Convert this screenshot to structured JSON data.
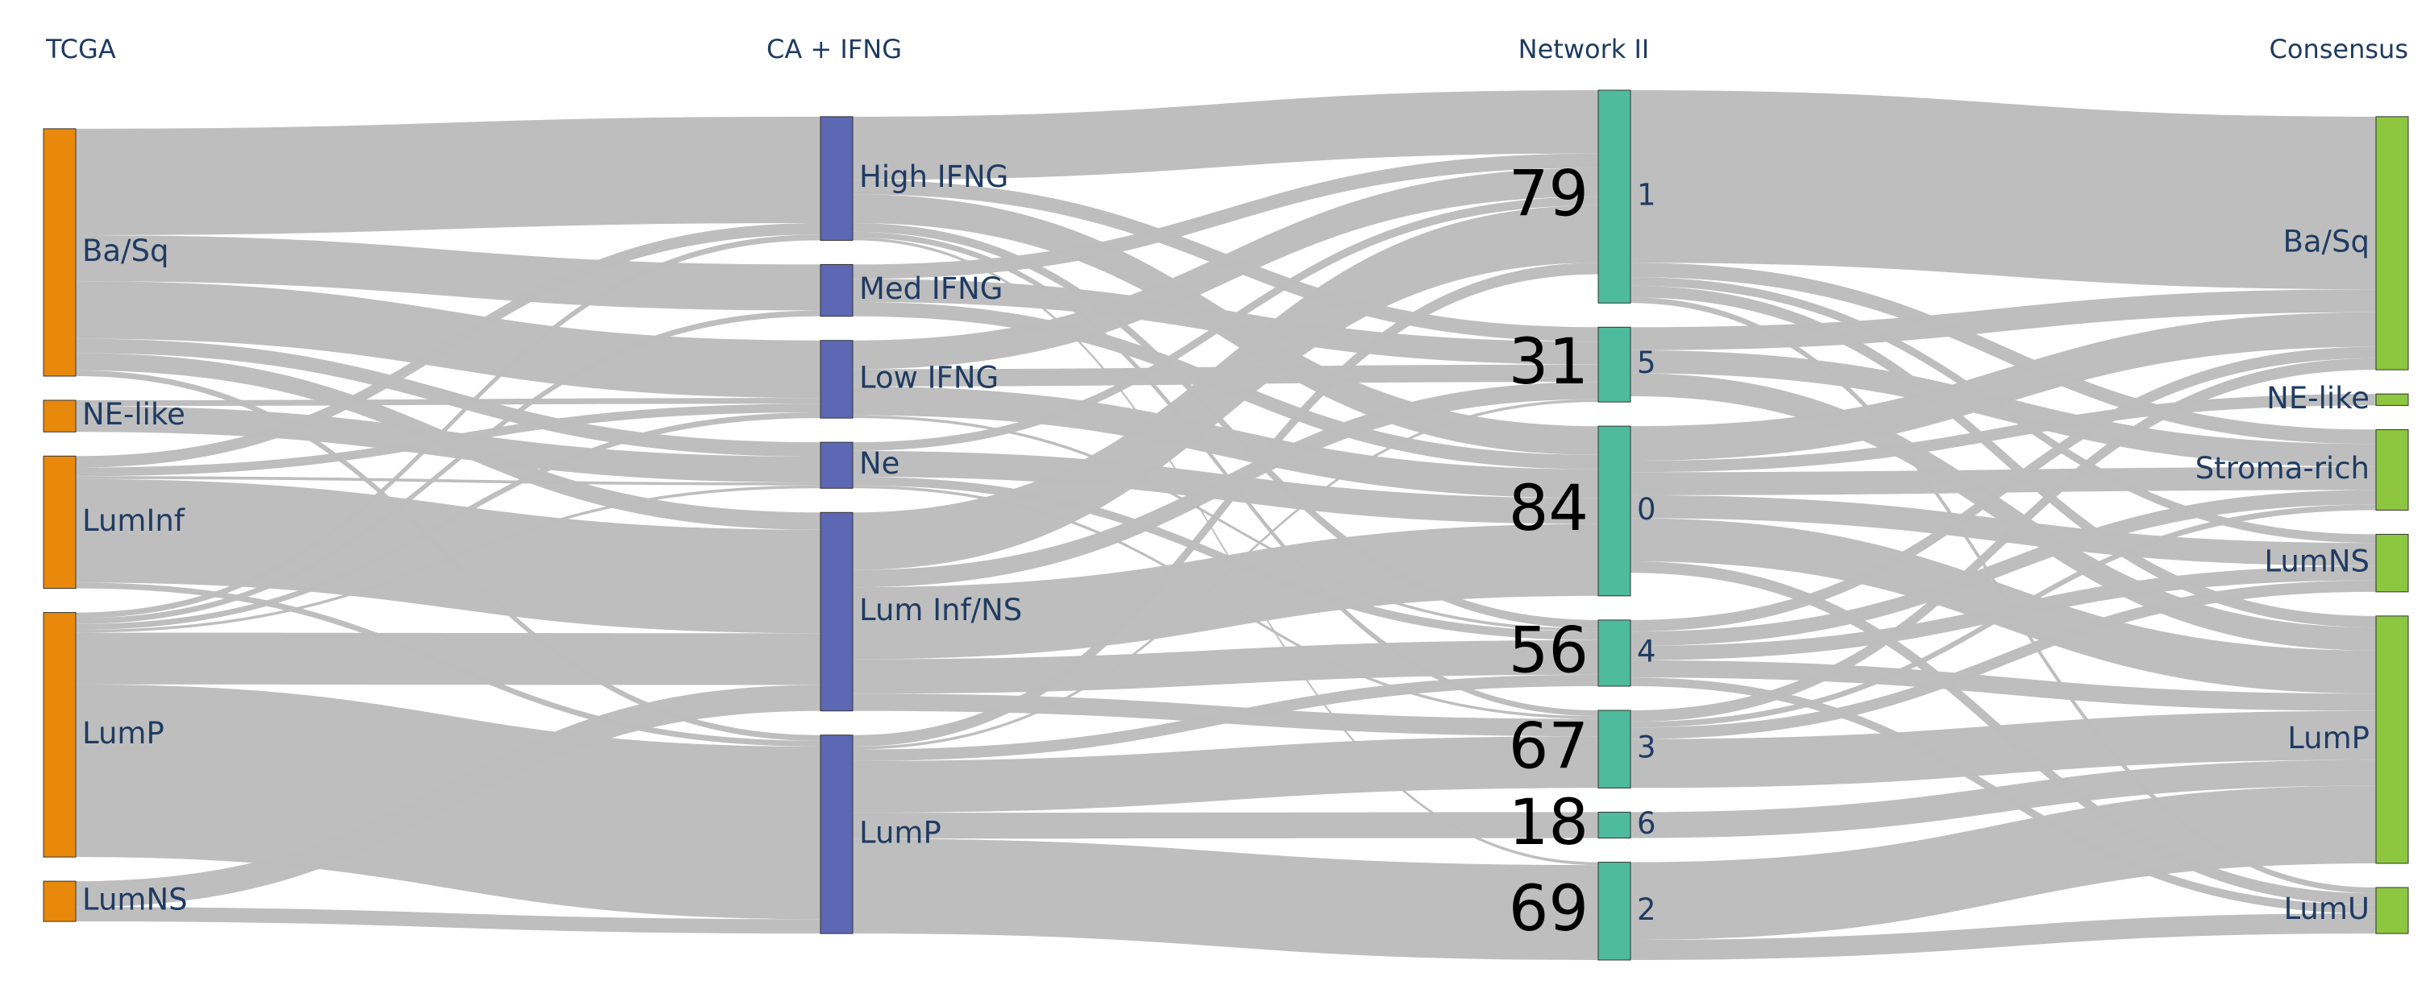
{
  "columns": [
    {
      "id": "tcga",
      "title": "TCGA",
      "color": "#e8890c",
      "nodes": [
        {
          "id": "t_basq",
          "label": "Ba/Sq"
        },
        {
          "id": "t_ne",
          "label": "NE-like"
        },
        {
          "id": "t_luminf",
          "label": "LumInf"
        },
        {
          "id": "t_lump",
          "label": "LumP"
        },
        {
          "id": "t_lumns",
          "label": "LumNS"
        }
      ]
    },
    {
      "id": "ca",
      "title": "CA + IFNG",
      "color": "#5c68b3",
      "nodes": [
        {
          "id": "c_high",
          "label": "High IFNG"
        },
        {
          "id": "c_med",
          "label": "Med IFNG"
        },
        {
          "id": "c_low",
          "label": "Low IFNG"
        },
        {
          "id": "c_ne",
          "label": "Ne"
        },
        {
          "id": "c_luminf",
          "label": "Lum Inf/NS"
        },
        {
          "id": "c_lump",
          "label": "LumP"
        }
      ]
    },
    {
      "id": "net",
      "title": "Network II",
      "color": "#4dbb9c",
      "nodes": [
        {
          "id": "n1",
          "label": "1",
          "count": "79"
        },
        {
          "id": "n5",
          "label": "5",
          "count": "31"
        },
        {
          "id": "n0",
          "label": "0",
          "count": "84"
        },
        {
          "id": "n4",
          "label": "4",
          "count": "56"
        },
        {
          "id": "n3",
          "label": "3",
          "count": "67"
        },
        {
          "id": "n6",
          "label": "6",
          "count": "18"
        },
        {
          "id": "n2",
          "label": "2",
          "count": "69"
        }
      ]
    },
    {
      "id": "cons",
      "title": "Consensus",
      "color": "#8dc63f",
      "nodes": [
        {
          "id": "s_basq",
          "label": "Ba/Sq"
        },
        {
          "id": "s_ne",
          "label": "NE-like"
        },
        {
          "id": "s_stroma",
          "label": "Stroma-rich"
        },
        {
          "id": "s_lumns",
          "label": "LumNS"
        },
        {
          "id": "s_lump",
          "label": "LumP"
        },
        {
          "id": "s_lumu",
          "label": "LumU"
        }
      ]
    }
  ],
  "links": [
    {
      "source": "t_basq",
      "target": "c_high",
      "value": 37
    },
    {
      "source": "t_basq",
      "target": "c_med",
      "value": 16
    },
    {
      "source": "t_basq",
      "target": "c_low",
      "value": 20
    },
    {
      "source": "t_basq",
      "target": "c_ne",
      "value": 5
    },
    {
      "source": "t_basq",
      "target": "c_luminf",
      "value": 6
    },
    {
      "source": "t_basq",
      "target": "c_lump",
      "value": 2
    },
    {
      "source": "t_ne",
      "target": "c_ne",
      "value": 9
    },
    {
      "source": "t_ne",
      "target": "c_low",
      "value": 2
    },
    {
      "source": "t_luminf",
      "target": "c_high",
      "value": 4
    },
    {
      "source": "t_luminf",
      "target": "c_low",
      "value": 3
    },
    {
      "source": "t_luminf",
      "target": "c_ne",
      "value": 1
    },
    {
      "source": "t_luminf",
      "target": "c_luminf",
      "value": 36
    },
    {
      "source": "t_luminf",
      "target": "c_lump",
      "value": 2
    },
    {
      "source": "t_lump",
      "target": "c_high",
      "value": 2
    },
    {
      "source": "t_lump",
      "target": "c_med",
      "value": 2
    },
    {
      "source": "t_lump",
      "target": "c_low",
      "value": 2
    },
    {
      "source": "t_lump",
      "target": "c_ne",
      "value": 1
    },
    {
      "source": "t_lump",
      "target": "c_luminf",
      "value": 18
    },
    {
      "source": "t_lump",
      "target": "c_lump",
      "value": 60
    },
    {
      "source": "t_lumns",
      "target": "c_luminf",
      "value": 9
    },
    {
      "source": "t_lumns",
      "target": "c_lump",
      "value": 5
    },
    {
      "source": "c_high",
      "target": "n1",
      "value": 22
    },
    {
      "source": "c_high",
      "target": "n5",
      "value": 5
    },
    {
      "source": "c_high",
      "target": "n0",
      "value": 10
    },
    {
      "source": "c_high",
      "target": "n4",
      "value": 3
    },
    {
      "source": "c_high",
      "target": "n3",
      "value": 2
    },
    {
      "source": "c_high",
      "target": "n2",
      "value": 1
    },
    {
      "source": "c_med",
      "target": "n1",
      "value": 5
    },
    {
      "source": "c_med",
      "target": "n5",
      "value": 8
    },
    {
      "source": "c_med",
      "target": "n0",
      "value": 5
    },
    {
      "source": "c_low",
      "target": "n1",
      "value": 10
    },
    {
      "source": "c_low",
      "target": "n5",
      "value": 6
    },
    {
      "source": "c_low",
      "target": "n0",
      "value": 10
    },
    {
      "source": "c_low",
      "target": "n4",
      "value": 1
    },
    {
      "source": "c_ne",
      "target": "n1",
      "value": 3
    },
    {
      "source": "c_ne",
      "target": "n0",
      "value": 9
    },
    {
      "source": "c_ne",
      "target": "n4",
      "value": 3
    },
    {
      "source": "c_ne",
      "target": "n3",
      "value": 1
    },
    {
      "source": "c_luminf",
      "target": "n1",
      "value": 20
    },
    {
      "source": "c_luminf",
      "target": "n5",
      "value": 6
    },
    {
      "source": "c_luminf",
      "target": "n0",
      "value": 25
    },
    {
      "source": "c_luminf",
      "target": "n4",
      "value": 12
    },
    {
      "source": "c_luminf",
      "target": "n3",
      "value": 6
    },
    {
      "source": "c_lump",
      "target": "n1",
      "value": 4
    },
    {
      "source": "c_lump",
      "target": "n5",
      "value": 1
    },
    {
      "source": "c_lump",
      "target": "n4",
      "value": 4
    },
    {
      "source": "c_lump",
      "target": "n3",
      "value": 18
    },
    {
      "source": "c_lump",
      "target": "n6",
      "value": 9
    },
    {
      "source": "c_lump",
      "target": "n2",
      "value": 33
    },
    {
      "source": "n1",
      "target": "s_basq",
      "value": 60
    },
    {
      "source": "n1",
      "target": "s_stroma",
      "value": 5
    },
    {
      "source": "n1",
      "target": "s_lumns",
      "value": 3
    },
    {
      "source": "n1",
      "target": "s_lump",
      "value": 4
    },
    {
      "source": "n1",
      "target": "s_lumu",
      "value": 2
    },
    {
      "source": "n5",
      "target": "s_basq",
      "value": 8
    },
    {
      "source": "n5",
      "target": "s_stroma",
      "value": 8
    },
    {
      "source": "n5",
      "target": "s_lump",
      "value": 8
    },
    {
      "source": "n0",
      "target": "s_basq",
      "value": 12
    },
    {
      "source": "n0",
      "target": "s_ne",
      "value": 4
    },
    {
      "source": "n0",
      "target": "s_stroma",
      "value": 8
    },
    {
      "source": "n0",
      "target": "s_lumns",
      "value": 8
    },
    {
      "source": "n0",
      "target": "s_lump",
      "value": 15
    },
    {
      "source": "n0",
      "target": "s_lumu",
      "value": 4
    },
    {
      "source": "n4",
      "target": "s_basq",
      "value": 4
    },
    {
      "source": "n4",
      "target": "s_stroma",
      "value": 5
    },
    {
      "source": "n4",
      "target": "s_lumns",
      "value": 5
    },
    {
      "source": "n4",
      "target": "s_lump",
      "value": 6
    },
    {
      "source": "n4",
      "target": "s_lumu",
      "value": 3
    },
    {
      "source": "n3",
      "target": "s_basq",
      "value": 4
    },
    {
      "source": "n3",
      "target": "s_stroma",
      "value": 2
    },
    {
      "source": "n3",
      "target": "s_lumns",
      "value": 4
    },
    {
      "source": "n3",
      "target": "s_lump",
      "value": 17
    },
    {
      "source": "n6",
      "target": "s_lump",
      "value": 9
    },
    {
      "source": "n2",
      "target": "s_lump",
      "value": 27
    },
    {
      "source": "n2",
      "target": "s_lumu",
      "value": 7
    }
  ]
}
